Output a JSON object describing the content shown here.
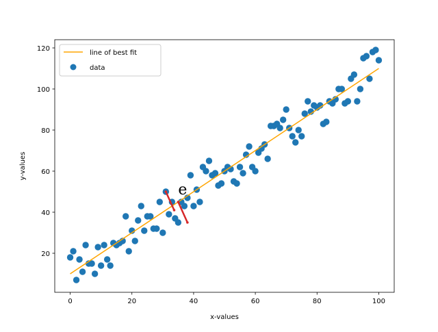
{
  "chart_data": {
    "type": "scatter",
    "xlabel": "x-values",
    "ylabel": "y-values",
    "xlim": [
      -5,
      105
    ],
    "ylim": [
      1,
      124
    ],
    "xticks": [
      0,
      20,
      40,
      60,
      80,
      100
    ],
    "yticks": [
      20,
      40,
      60,
      80,
      100,
      120
    ],
    "grid": false,
    "legend_position": "top-left",
    "series": [
      {
        "name": "line of best fit",
        "kind": "line",
        "color": "#ffa500",
        "x": [
          0,
          100
        ],
        "y": [
          10,
          110
        ]
      },
      {
        "name": "data",
        "kind": "scatter",
        "color": "#1f77b4",
        "points": [
          [
            0,
            18
          ],
          [
            1,
            21
          ],
          [
            2,
            7
          ],
          [
            3,
            17
          ],
          [
            4,
            11
          ],
          [
            5,
            24
          ],
          [
            6,
            15
          ],
          [
            7,
            15
          ],
          [
            8,
            10
          ],
          [
            9,
            23
          ],
          [
            10,
            14
          ],
          [
            11,
            24
          ],
          [
            12,
            17
          ],
          [
            13,
            14
          ],
          [
            14,
            25
          ],
          [
            15,
            24
          ],
          [
            16,
            25
          ],
          [
            17,
            26
          ],
          [
            18,
            38
          ],
          [
            19,
            21
          ],
          [
            20,
            31
          ],
          [
            21,
            26
          ],
          [
            22,
            36
          ],
          [
            23,
            43
          ],
          [
            24,
            31
          ],
          [
            25,
            38
          ],
          [
            26,
            38
          ],
          [
            27,
            32
          ],
          [
            28,
            32
          ],
          [
            29,
            45
          ],
          [
            30,
            30
          ],
          [
            31,
            50
          ],
          [
            32,
            39
          ],
          [
            33,
            45
          ],
          [
            34,
            37
          ],
          [
            35,
            35
          ],
          [
            36,
            45
          ],
          [
            37,
            43
          ],
          [
            38,
            47
          ],
          [
            39,
            58
          ],
          [
            40,
            43
          ],
          [
            41,
            51
          ],
          [
            42,
            45
          ],
          [
            43,
            62
          ],
          [
            44,
            60
          ],
          [
            45,
            65
          ],
          [
            46,
            58
          ],
          [
            47,
            59
          ],
          [
            48,
            53
          ],
          [
            49,
            54
          ],
          [
            50,
            60
          ],
          [
            51,
            62
          ],
          [
            52,
            61
          ],
          [
            53,
            55
          ],
          [
            54,
            54
          ],
          [
            55,
            62
          ],
          [
            56,
            59
          ],
          [
            57,
            68
          ],
          [
            58,
            72
          ],
          [
            59,
            62
          ],
          [
            60,
            60
          ],
          [
            61,
            69
          ],
          [
            62,
            71
          ],
          [
            63,
            73
          ],
          [
            64,
            66
          ],
          [
            65,
            82
          ],
          [
            66,
            82
          ],
          [
            67,
            83
          ],
          [
            68,
            81
          ],
          [
            69,
            85
          ],
          [
            70,
            90
          ],
          [
            71,
            81
          ],
          [
            72,
            77
          ],
          [
            73,
            74
          ],
          [
            74,
            80
          ],
          [
            75,
            77
          ],
          [
            76,
            88
          ],
          [
            77,
            94
          ],
          [
            78,
            89
          ],
          [
            79,
            92
          ],
          [
            80,
            91
          ],
          [
            81,
            92
          ],
          [
            82,
            83
          ],
          [
            83,
            84
          ],
          [
            84,
            94
          ],
          [
            85,
            93
          ],
          [
            86,
            95
          ],
          [
            87,
            100
          ],
          [
            88,
            100
          ],
          [
            89,
            93
          ],
          [
            90,
            94
          ],
          [
            91,
            105
          ],
          [
            92,
            107
          ],
          [
            93,
            94
          ],
          [
            94,
            100
          ],
          [
            95,
            115
          ],
          [
            96,
            116
          ],
          [
            97,
            105
          ],
          [
            98,
            118
          ],
          [
            99,
            119
          ],
          [
            100,
            114
          ]
        ]
      }
    ],
    "annotations": [
      {
        "text": "e",
        "residual_segments": [
          {
            "x": 31,
            "y_from": 50,
            "y_to": 41
          },
          {
            "x": 35,
            "y_from": 45,
            "y_to": 35
          }
        ],
        "segment_color": "#d62728",
        "point_color": "#d62728"
      }
    ]
  }
}
